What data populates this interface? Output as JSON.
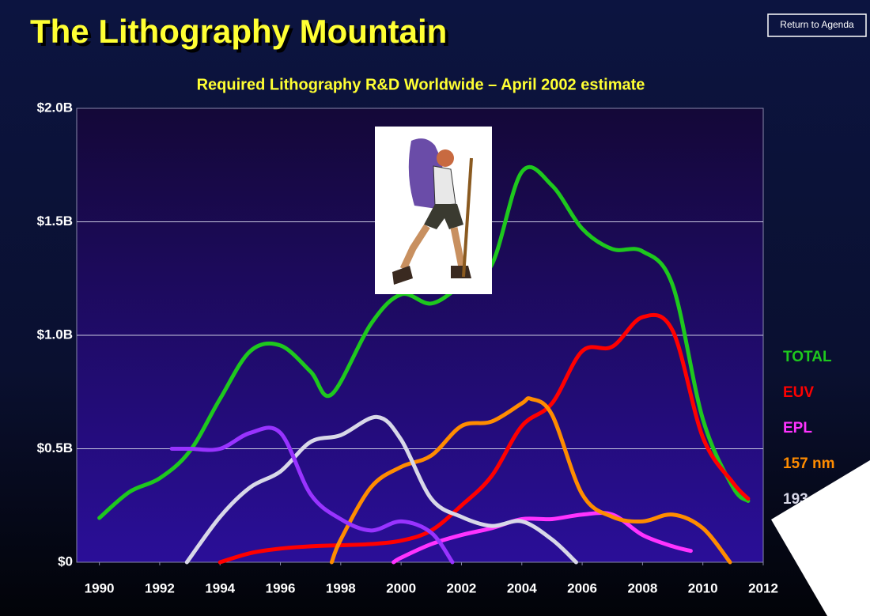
{
  "chart_data": {
    "type": "line",
    "title": "The Lithography Mountain",
    "subtitle": "Required Lithography R&D Worldwide – April 2002 estimate",
    "button": "Return to Agenda",
    "xlim": [
      1989.25,
      2012
    ],
    "xticks": [
      1990,
      1992,
      1994,
      1996,
      1998,
      2000,
      2002,
      2004,
      2006,
      2008,
      2010,
      2012
    ],
    "ylim": [
      0,
      2.0
    ],
    "yticks": [
      {
        "value": 0,
        "label": "$0"
      },
      {
        "value": 0.5,
        "label": "$0.5B"
      },
      {
        "value": 1.0,
        "label": "$1.0B"
      },
      {
        "value": 1.5,
        "label": "$1.5B"
      },
      {
        "value": 2.0,
        "label": "$2.0B"
      }
    ],
    "grid": true,
    "series": [
      {
        "name": "TOTAL",
        "color": "#1ec81e",
        "x": [
          1990,
          1991,
          1992,
          1993,
          1994,
          1995,
          1996,
          1997,
          1997.7,
          1999,
          2000,
          2001,
          2002,
          2003,
          2004,
          2005,
          2006,
          2007,
          2008,
          2009,
          2010,
          2011,
          2011.5
        ],
        "values": [
          0.195,
          0.31,
          0.37,
          0.49,
          0.72,
          0.93,
          0.955,
          0.84,
          0.74,
          1.05,
          1.18,
          1.14,
          1.22,
          1.31,
          1.72,
          1.66,
          1.47,
          1.38,
          1.37,
          1.22,
          0.63,
          0.33,
          0.27
        ]
      },
      {
        "name": "EUV",
        "color": "#ff0000",
        "x": [
          1994,
          1995,
          1996,
          1997,
          1998,
          1999,
          2000,
          2001,
          2002,
          2003,
          2004,
          2005,
          2006,
          2007,
          2008,
          2009,
          2010,
          2011,
          2011.5
        ],
        "values": [
          0,
          0.04,
          0.06,
          0.07,
          0.075,
          0.08,
          0.095,
          0.14,
          0.25,
          0.38,
          0.6,
          0.7,
          0.93,
          0.95,
          1.08,
          1.02,
          0.55,
          0.35,
          0.28
        ]
      },
      {
        "name": "EPL",
        "color": "#ff33ff",
        "x": [
          1999.75,
          2000,
          2001,
          2002,
          2003,
          2004,
          2005,
          2006,
          2007,
          2008,
          2009,
          2009.6
        ],
        "values": [
          0,
          0.02,
          0.08,
          0.12,
          0.15,
          0.19,
          0.19,
          0.21,
          0.21,
          0.12,
          0.07,
          0.05
        ]
      },
      {
        "name": "157 nm",
        "color": "#ff8c00",
        "x": [
          1997.7,
          1998,
          1999,
          2000,
          2001,
          2002,
          2003,
          2004,
          2004.3,
          2005,
          2006,
          2007,
          2008,
          2009,
          2010,
          2010.9
        ],
        "values": [
          0,
          0.1,
          0.33,
          0.42,
          0.47,
          0.6,
          0.62,
          0.7,
          0.72,
          0.65,
          0.3,
          0.2,
          0.18,
          0.21,
          0.15,
          0
        ]
      },
      {
        "name": "193",
        "color": "#d8d8e8",
        "x": [
          1992.9,
          1994,
          1995,
          1996,
          1997,
          1998,
          1999.2,
          2000,
          2001,
          2002,
          2003,
          2004,
          2005,
          2005.8
        ],
        "values": [
          0,
          0.2,
          0.33,
          0.4,
          0.53,
          0.56,
          0.64,
          0.54,
          0.28,
          0.2,
          0.16,
          0.18,
          0.1,
          0
        ]
      },
      {
        "color": "#9933ff",
        "x": [
          1992.4,
          1993,
          1994,
          1995,
          1996,
          1997,
          1998,
          1999,
          2000,
          2001,
          2001.7
        ],
        "values": [
          0.5,
          0.5,
          0.5,
          0.57,
          0.57,
          0.3,
          0.19,
          0.14,
          0.18,
          0.13,
          0
        ]
      }
    ]
  }
}
